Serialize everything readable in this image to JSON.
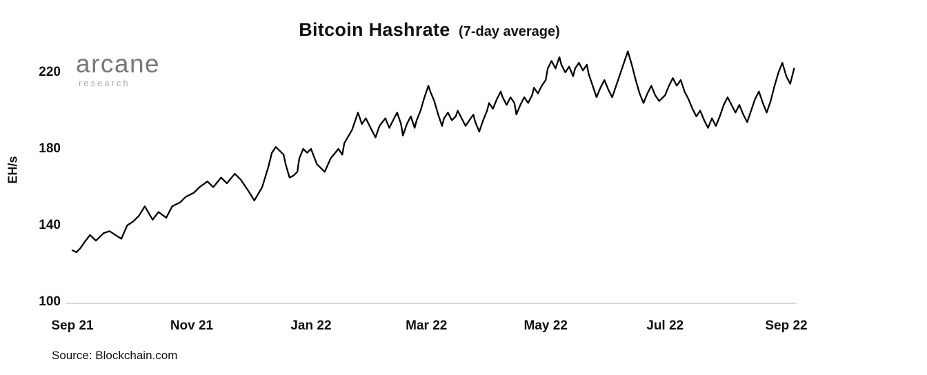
{
  "chart": {
    "title": "Bitcoin Hashrate",
    "subtitle": "(7-day average)",
    "ylabel": "EH/s",
    "source": "Source: Blockchain.com"
  },
  "branding": {
    "logo_text": "arcane",
    "logo_subtext": "research"
  },
  "colors": {
    "line": "#000000",
    "axis_line": "#d8d8d8",
    "text": "#111111",
    "logo_main": "#787878",
    "logo_sub": "#ababab"
  },
  "chart_data": {
    "type": "line",
    "title": "Bitcoin Hashrate (7-day average)",
    "xlabel": "",
    "ylabel": "EH/s",
    "source": "Source: Blockchain.com",
    "grid": false,
    "legend": false,
    "ylim": [
      100,
      240
    ],
    "y_ticks": [
      100,
      140,
      180,
      220
    ],
    "x_unit": "days (axis spans Sep 2021 to Sep 2022)",
    "x_ticks": [
      {
        "pos": 0,
        "label": "Sep 21"
      },
      {
        "pos": 61,
        "label": "Nov 21"
      },
      {
        "pos": 122,
        "label": "Jan 22"
      },
      {
        "pos": 181,
        "label": "Mar 22"
      },
      {
        "pos": 242,
        "label": "May 22"
      },
      {
        "pos": 303,
        "label": "Jul 22"
      },
      {
        "pos": 365,
        "label": "Sep 22"
      }
    ],
    "series": [
      {
        "name": "Bitcoin hashrate, 7-day average (EH/s)",
        "x": [
          0,
          2,
          4,
          6,
          9,
          12,
          14,
          16,
          19,
          22,
          25,
          28,
          31,
          34,
          37,
          41,
          44,
          48,
          51,
          55,
          58,
          62,
          65,
          69,
          72,
          76,
          79,
          83,
          86,
          90,
          93,
          97,
          100,
          102,
          104,
          106,
          108,
          109,
          111,
          113,
          115,
          116,
          118,
          120,
          122,
          125,
          129,
          132,
          136,
          138,
          139,
          143,
          145,
          146,
          148,
          150,
          153,
          155,
          157,
          160,
          162,
          164,
          166,
          168,
          169,
          171,
          173,
          175,
          176,
          178,
          180,
          182,
          183,
          185,
          187,
          189,
          190,
          192,
          194,
          196,
          197,
          199,
          201,
          203,
          205,
          206,
          208,
          210,
          212,
          213,
          215,
          217,
          219,
          220,
          222,
          224,
          226,
          227,
          229,
          231,
          233,
          235,
          236,
          238,
          240,
          242,
          243,
          245,
          247,
          249,
          250,
          252,
          254,
          256,
          257,
          259,
          261,
          263,
          264,
          266,
          268,
          270,
          272,
          274,
          276,
          278,
          280,
          282,
          284,
          286,
          288,
          290,
          292,
          294,
          296,
          298,
          300,
          303,
          305,
          307,
          309,
          311,
          313,
          315,
          317,
          319,
          321,
          323,
          325,
          327,
          329,
          331,
          333,
          335,
          337,
          339,
          341,
          343,
          345,
          347,
          349,
          351,
          353,
          355,
          357,
          359,
          361,
          363,
          365,
          367,
          369
        ],
        "values": [
          127,
          126,
          128,
          131,
          135,
          132,
          134,
          136,
          137,
          135,
          133,
          140,
          142,
          145,
          150,
          143,
          147,
          144,
          150,
          152,
          155,
          157,
          160,
          163,
          160,
          165,
          162,
          167,
          164,
          158,
          153,
          160,
          170,
          178,
          181,
          179,
          177,
          172,
          165,
          166,
          168,
          175,
          180,
          178,
          180,
          172,
          168,
          175,
          180,
          177,
          183,
          190,
          196,
          199,
          193,
          196,
          190,
          186,
          192,
          196,
          191,
          195,
          199,
          193,
          187,
          193,
          197,
          191,
          195,
          200,
          207,
          213,
          210,
          205,
          198,
          192,
          196,
          199,
          195,
          197,
          200,
          196,
          192,
          195,
          198,
          194,
          189,
          195,
          200,
          204,
          201,
          206,
          210,
          207,
          203,
          207,
          204,
          198,
          203,
          207,
          204,
          208,
          212,
          209,
          213,
          216,
          222,
          226,
          222,
          228,
          224,
          220,
          223,
          218,
          222,
          225,
          221,
          224,
          219,
          213,
          207,
          212,
          216,
          211,
          207,
          213,
          219,
          225,
          231,
          224,
          216,
          209,
          204,
          209,
          213,
          208,
          205,
          208,
          213,
          217,
          213,
          216,
          210,
          206,
          201,
          197,
          200,
          195,
          191,
          196,
          192,
          197,
          203,
          207,
          203,
          199,
          203,
          198,
          194,
          200,
          206,
          210,
          204,
          199,
          205,
          213,
          220,
          225,
          218,
          214,
          222
        ]
      }
    ]
  }
}
